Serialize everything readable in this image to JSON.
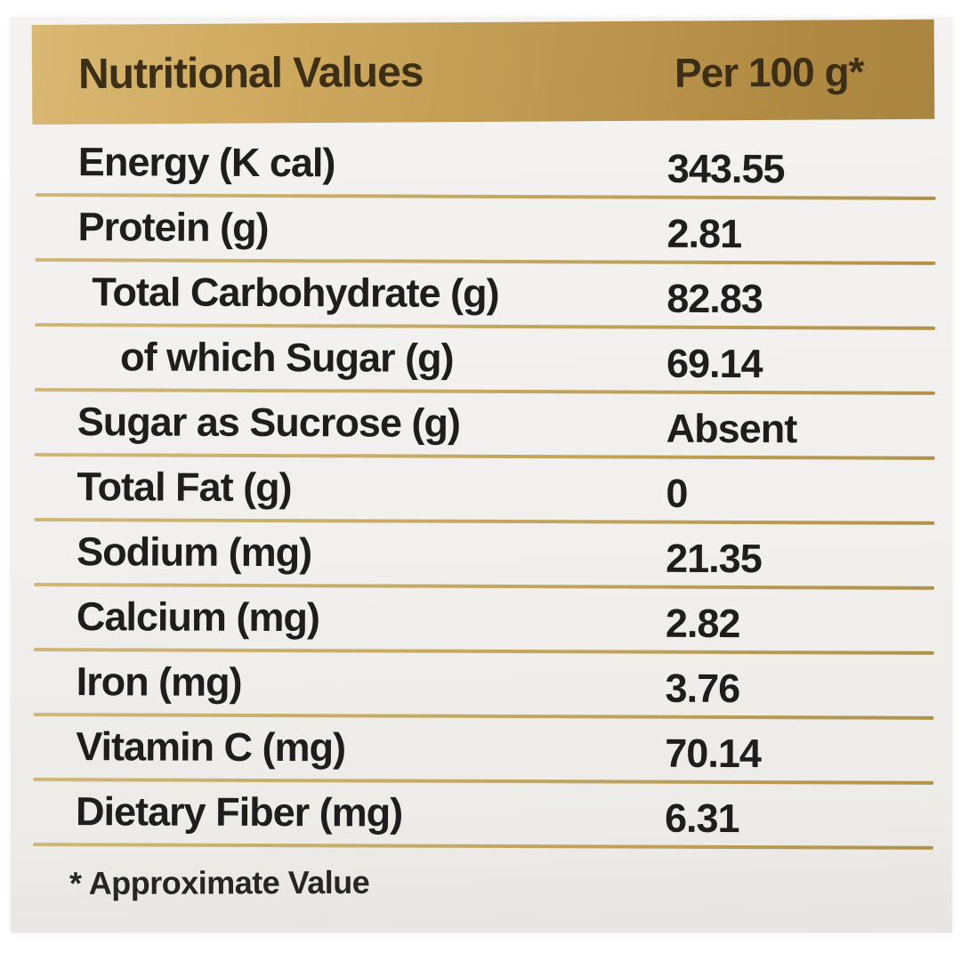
{
  "label": {
    "header": {
      "title": "Nutritional Values",
      "unit": "Per 100 g*"
    },
    "rows": [
      {
        "name": "Energy (K cal)",
        "value": "343.55"
      },
      {
        "name": "Protein (g)",
        "value": "2.81"
      },
      {
        "name": "Total Carbohydrate (g)",
        "value": "82.83"
      },
      {
        "name": "of which Sugar (g)",
        "value": "69.14"
      },
      {
        "name": "Sugar as Sucrose (g)",
        "value": "Absent"
      },
      {
        "name": "Total Fat (g)",
        "value": "0"
      },
      {
        "name": "Sodium (mg)",
        "value": "21.35"
      },
      {
        "name": "Calcium (mg)",
        "value": "2.82"
      },
      {
        "name": "Iron (mg)",
        "value": "3.76"
      },
      {
        "name": "Vitamin C (mg)",
        "value": "70.14"
      },
      {
        "name": "Dietary Fiber (mg)",
        "value": "6.31"
      }
    ],
    "footnote": "* Approximate Value",
    "colors": {
      "gold_header": "#c09a52",
      "gold_header_light": "#d9b873",
      "gold_header_dark": "#a9853f",
      "gold_rule": "#c6aa63",
      "header_text": "#3c2f15",
      "body_text": "#1e1e1e",
      "sheet_background": "#f2f0ee",
      "page_background": "#ffffff"
    }
  }
}
